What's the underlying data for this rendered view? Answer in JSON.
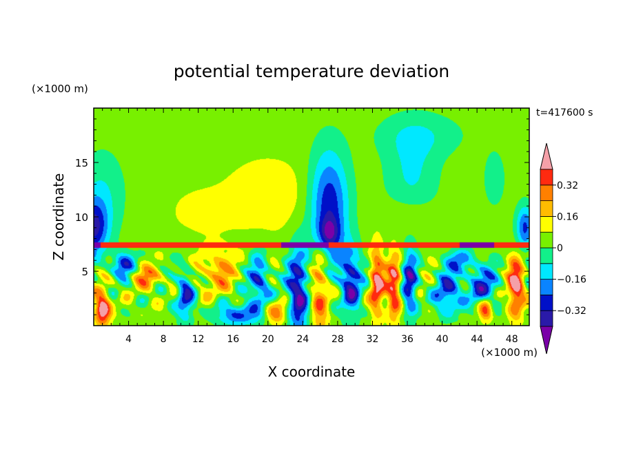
{
  "chart_data": {
    "type": "heatmap",
    "title": "potential temperature deviation",
    "xlabel": "X coordinate",
    "ylabel": "Z coordinate",
    "x_unit": "(×1000 m)",
    "y_unit": "(×1000 m)",
    "time_label": "t=417600 s",
    "xlim": [
      0,
      50
    ],
    "ylim": [
      0,
      20
    ],
    "x_ticks": [
      4,
      8,
      12,
      16,
      20,
      24,
      28,
      32,
      36,
      40,
      44,
      48
    ],
    "y_ticks": [
      5,
      10,
      15
    ],
    "colorbar": {
      "levels": [
        -0.48,
        -0.4,
        -0.32,
        -0.24,
        -0.16,
        -0.08,
        0,
        0.08,
        0.16,
        0.24,
        0.32,
        0.4
      ],
      "tick_labels": [
        {
          "value": 0.32,
          "label": "0.32"
        },
        {
          "value": 0.16,
          "label": "0.16"
        },
        {
          "value": 0,
          "label": "0"
        },
        {
          "value": -0.16,
          "label": "−0.16"
        },
        {
          "value": -0.32,
          "label": "−0.32"
        }
      ],
      "colors": [
        "#7a00a8",
        "#2a1aa8",
        "#0010c8",
        "#0a84ff",
        "#00e8ff",
        "#12f08a",
        "#78f000",
        "#ffff00",
        "#ffbc00",
        "#ff8000",
        "#ff2a10",
        "#f4a0a8"
      ],
      "bands": [
        {
          "lo": -0.4,
          "hi": -0.32,
          "color": "#2a1aa8"
        },
        {
          "lo": -0.32,
          "hi": -0.24,
          "color": "#0010c8"
        },
        {
          "lo": -0.24,
          "hi": -0.16,
          "color": "#0a84ff"
        },
        {
          "lo": -0.16,
          "hi": -0.08,
          "color": "#00e8ff"
        },
        {
          "lo": -0.08,
          "hi": 0.0,
          "color": "#12f08a"
        },
        {
          "lo": 0.0,
          "hi": 0.08,
          "color": "#78f000"
        },
        {
          "lo": 0.08,
          "hi": 0.16,
          "color": "#ffff00"
        },
        {
          "lo": 0.16,
          "hi": 0.24,
          "color": "#ffbc00"
        },
        {
          "lo": 0.24,
          "hi": 0.32,
          "color": "#ff8000"
        },
        {
          "lo": 0.32,
          "hi": 0.4,
          "color": "#ff2a10"
        }
      ],
      "under_color": "#7a00a8",
      "over_color": "#f4a0a8"
    },
    "field": {
      "description_units": "x in 1000 m, z in 1000 m, value in K",
      "background_value": 0.04,
      "features": [
        {
          "x": 20,
          "z": 12,
          "sx": 5,
          "sz": 3.5,
          "a": 0.1
        },
        {
          "x": 12,
          "z": 10.5,
          "sx": 4,
          "sz": 2.5,
          "a": 0.06
        },
        {
          "x": 36,
          "z": 10,
          "sx": 3,
          "sz": 1.5,
          "a": 0.07
        },
        {
          "x": 0,
          "z": 9,
          "sx": 1.6,
          "sz": 2.5,
          "a": -0.35
        },
        {
          "x": 1,
          "z": 12,
          "sx": 2.5,
          "sz": 4,
          "a": -0.12
        },
        {
          "x": 27,
          "z": 11,
          "sx": 2.2,
          "sz": 5,
          "a": -0.35
        },
        {
          "x": 27,
          "z": 8.5,
          "sx": 1.2,
          "sz": 1.4,
          "a": -0.25
        },
        {
          "x": 36.5,
          "z": 14,
          "sx": 3,
          "sz": 4,
          "a": -0.13
        },
        {
          "x": 37.5,
          "z": 17.5,
          "sx": 5,
          "sz": 2,
          "a": -0.1
        },
        {
          "x": 46,
          "z": 13.5,
          "sx": 1.2,
          "sz": 2.5,
          "a": -0.1
        },
        {
          "x": 49.5,
          "z": 9,
          "sx": 1,
          "sz": 2,
          "a": -0.3
        },
        {
          "x": 1,
          "z": 1.5,
          "sx": 0.9,
          "sz": 1.5,
          "a": 0.45
        },
        {
          "x": 6,
          "z": 4.5,
          "sx": 2,
          "sz": 1,
          "a": 0.22
        },
        {
          "x": 3.5,
          "z": 5.5,
          "sx": 1.5,
          "sz": 1.2,
          "a": -0.3
        },
        {
          "x": 10.5,
          "z": 3,
          "sx": 1,
          "sz": 2.5,
          "a": -0.35
        },
        {
          "x": 14,
          "z": 5,
          "sx": 2.5,
          "sz": 2,
          "a": 0.18
        },
        {
          "x": 16.5,
          "z": 1,
          "sx": 2.5,
          "sz": 1,
          "a": -0.3
        },
        {
          "x": 19,
          "z": 4,
          "sx": 1.2,
          "sz": 2.5,
          "a": -0.33
        },
        {
          "x": 21,
          "z": 1.2,
          "sx": 1.2,
          "sz": 1,
          "a": 0.26
        },
        {
          "x": 23.5,
          "z": 3,
          "sx": 1.2,
          "sz": 4,
          "a": -0.42
        },
        {
          "x": 26,
          "z": 3,
          "sx": 1,
          "sz": 4,
          "a": 0.28
        },
        {
          "x": 29.5,
          "z": 4,
          "sx": 1.2,
          "sz": 3,
          "a": -0.4
        },
        {
          "x": 32.5,
          "z": 4,
          "sx": 0.8,
          "sz": 3,
          "a": 0.4
        },
        {
          "x": 34.5,
          "z": 3.5,
          "sx": 0.8,
          "sz": 3,
          "a": 0.35
        },
        {
          "x": 36.3,
          "z": 4,
          "sx": 0.9,
          "sz": 3,
          "a": -0.35
        },
        {
          "x": 40.5,
          "z": 3,
          "sx": 1.5,
          "sz": 2,
          "a": -0.3
        },
        {
          "x": 44.5,
          "z": 3.5,
          "sx": 2,
          "sz": 2,
          "a": -0.3
        },
        {
          "x": 45,
          "z": 1.5,
          "sx": 0.8,
          "sz": 1,
          "a": 0.4
        },
        {
          "x": 48.5,
          "z": 3.5,
          "sx": 0.9,
          "sz": 2.5,
          "a": 0.45
        },
        {
          "x": 42,
          "z": 6,
          "sx": 1.5,
          "sz": 1,
          "a": -0.25
        }
      ],
      "waves": {
        "z_min": 0.3,
        "z_max": 7.3,
        "amplitude": 0.18,
        "kx": 1.7,
        "kz": 1.3
      },
      "inversion": {
        "z": 7.4,
        "thickness": 0.25,
        "segments": [
          {
            "x0": 0.0,
            "x1": 0.8,
            "value": -0.44
          },
          {
            "x0": 0.8,
            "x1": 21.5,
            "value": 0.36
          },
          {
            "x0": 21.5,
            "x1": 27.0,
            "value": -0.44
          },
          {
            "x0": 27.0,
            "x1": 42.0,
            "value": 0.36
          },
          {
            "x0": 42.0,
            "x1": 46.0,
            "value": -0.44
          },
          {
            "x0": 46.0,
            "x1": 50.0,
            "value": 0.36
          }
        ]
      }
    }
  }
}
